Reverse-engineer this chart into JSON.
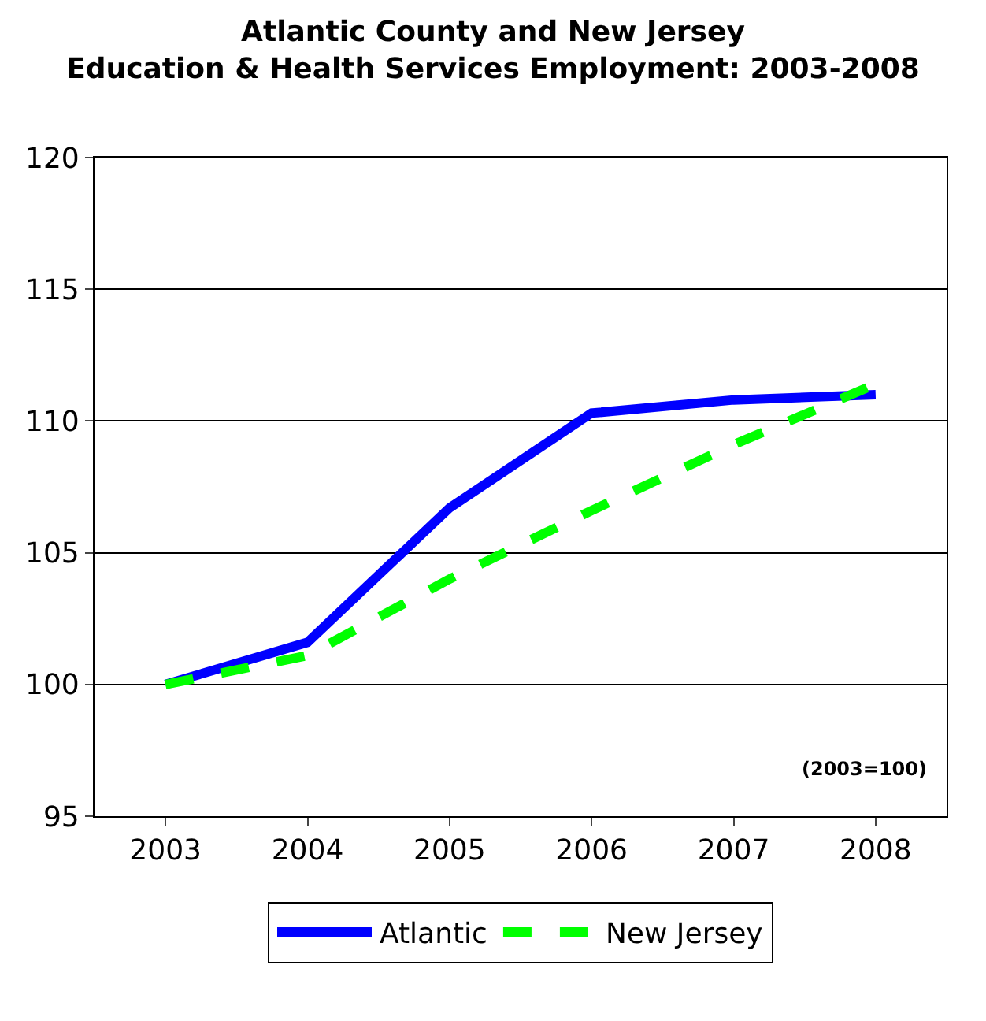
{
  "chart_data": {
    "type": "line",
    "title": "Atlantic County and New Jersey\nEducation & Health Services Employment: 2003-2008",
    "categories": [
      "2003",
      "2004",
      "2005",
      "2006",
      "2007",
      "2008"
    ],
    "series": [
      {
        "name": "Atlantic",
        "color": "#0000ff",
        "line_style": "solid",
        "values": [
          100,
          101.6,
          106.7,
          110.3,
          110.8,
          111.0
        ]
      },
      {
        "name": "New Jersey",
        "color": "#00ff00",
        "line_style": "dashed",
        "values": [
          100,
          101.1,
          104.0,
          106.6,
          109.1,
          111.4
        ]
      }
    ],
    "ylim": [
      95,
      120
    ],
    "yticks": [
      95,
      100,
      105,
      110,
      115,
      120
    ],
    "grid": "y",
    "legend": "bottom",
    "marker": "none",
    "annotations": [
      "(2003=100)"
    ]
  }
}
